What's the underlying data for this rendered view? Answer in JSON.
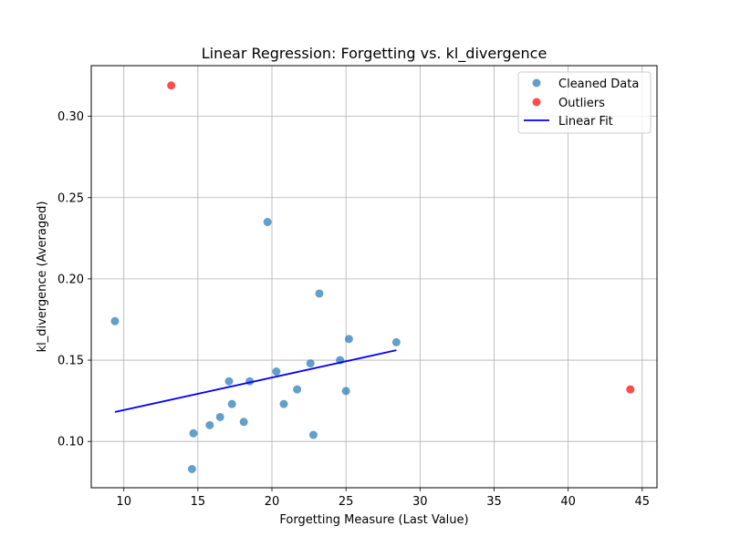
{
  "chart_data": {
    "type": "scatter",
    "title": "Linear Regression: Forgetting vs. kl_divergence",
    "xlabel": "Forgetting Measure (Last Value)",
    "ylabel": "kl_divergence (Averaged)",
    "xlim": [
      7.8,
      46.0
    ],
    "ylim": [
      0.0715,
      0.3312
    ],
    "xticks": [
      10,
      15,
      20,
      25,
      30,
      35,
      40,
      45
    ],
    "xtick_labels": [
      "10",
      "15",
      "20",
      "25",
      "30",
      "35",
      "40",
      "45"
    ],
    "yticks": [
      0.1,
      0.15,
      0.2,
      0.25,
      0.3
    ],
    "ytick_labels": [
      "0.10",
      "0.15",
      "0.20",
      "0.25",
      "0.30"
    ],
    "grid": true,
    "legend_position": "top-right",
    "series": [
      {
        "name": "Cleaned Data",
        "kind": "scatter",
        "color": "#1f77b4",
        "points": [
          [
            9.4,
            0.174
          ],
          [
            14.6,
            0.083
          ],
          [
            14.7,
            0.105
          ],
          [
            15.8,
            0.11
          ],
          [
            16.5,
            0.115
          ],
          [
            17.1,
            0.137
          ],
          [
            17.3,
            0.123
          ],
          [
            18.1,
            0.112
          ],
          [
            18.5,
            0.137
          ],
          [
            19.7,
            0.235
          ],
          [
            20.3,
            0.143
          ],
          [
            20.8,
            0.123
          ],
          [
            21.7,
            0.132
          ],
          [
            22.6,
            0.148
          ],
          [
            22.8,
            0.104
          ],
          [
            23.2,
            0.191
          ],
          [
            24.6,
            0.15
          ],
          [
            25.0,
            0.131
          ],
          [
            25.2,
            0.163
          ],
          [
            28.4,
            0.161
          ]
        ]
      },
      {
        "name": "Outliers",
        "kind": "scatter",
        "color": "#ff0000",
        "points": [
          [
            13.2,
            0.319
          ],
          [
            44.2,
            0.132
          ]
        ]
      },
      {
        "name": "Linear Fit",
        "kind": "line",
        "color": "#0000ff",
        "points": [
          [
            9.4,
            0.1181
          ],
          [
            28.4,
            0.1561
          ]
        ]
      }
    ]
  }
}
